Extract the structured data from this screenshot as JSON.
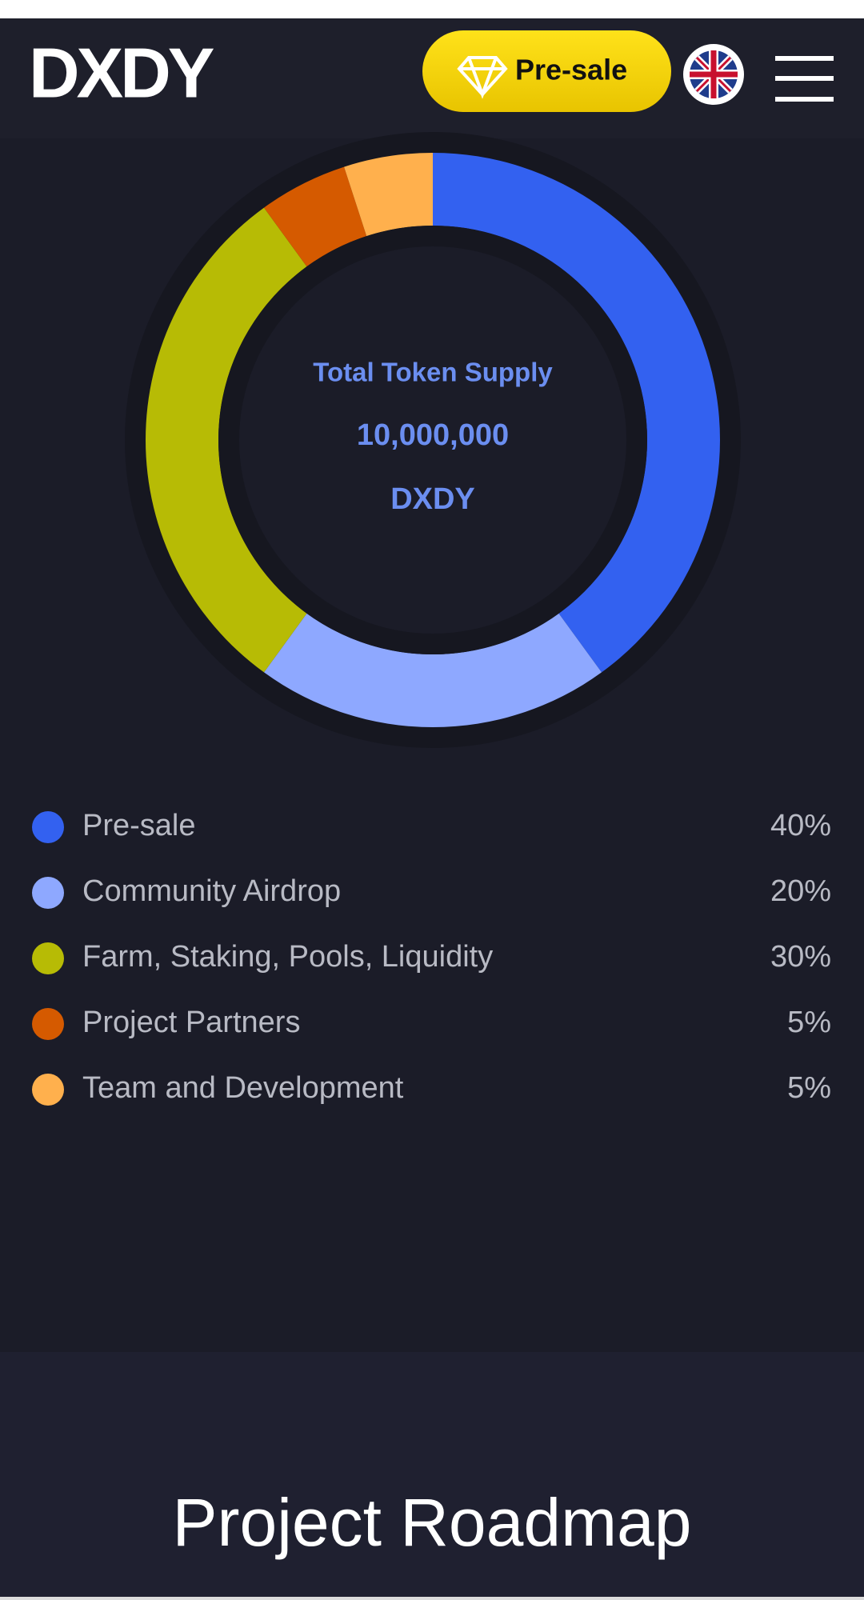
{
  "header": {
    "logo": "DXDY",
    "button": "Pre-sale"
  },
  "chart_data": {
    "type": "donut",
    "center_title": "Total Token Supply",
    "center_value": "10,000,000",
    "center_unit": "DXDY",
    "categories": [
      "Pre-sale",
      "Community Airdrop",
      "Farm, Staking, Pools, Liquidity",
      "Project Partners",
      "Team and Development"
    ],
    "values": [
      40,
      20,
      30,
      5,
      5
    ],
    "value_labels": [
      "40%",
      "20%",
      "30%",
      "5%",
      "5%"
    ],
    "colors": [
      "#3361f0",
      "#8ea8ff",
      "#b7bb05",
      "#d55a00",
      "#ffb04d"
    ]
  },
  "section_title": "Project Roadmap"
}
